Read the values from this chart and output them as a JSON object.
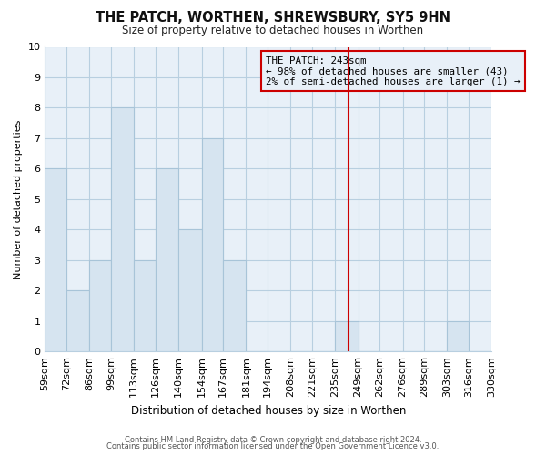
{
  "title": "THE PATCH, WORTHEN, SHREWSBURY, SY5 9HN",
  "subtitle": "Size of property relative to detached houses in Worthen",
  "xlabel": "Distribution of detached houses by size in Worthen",
  "ylabel": "Number of detached properties",
  "bar_color": "#d6e4f0",
  "bar_edge_color": "#a8c4d8",
  "grid_color": "#b8cfe0",
  "plot_bg_color": "#e8f0f8",
  "fig_bg_color": "#ffffff",
  "bin_edges": [
    59,
    72,
    86,
    99,
    113,
    126,
    140,
    154,
    167,
    181,
    194,
    208,
    221,
    235,
    249,
    262,
    276,
    289,
    303,
    316,
    330
  ],
  "bin_labels": [
    "59sqm",
    "72sqm",
    "86sqm",
    "99sqm",
    "113sqm",
    "126sqm",
    "140sqm",
    "154sqm",
    "167sqm",
    "181sqm",
    "194sqm",
    "208sqm",
    "221sqm",
    "235sqm",
    "249sqm",
    "262sqm",
    "276sqm",
    "289sqm",
    "303sqm",
    "316sqm",
    "330sqm"
  ],
  "counts": [
    6,
    2,
    3,
    8,
    3,
    6,
    4,
    7,
    3,
    0,
    0,
    0,
    0,
    1,
    0,
    0,
    0,
    0,
    1,
    0
  ],
  "ylim": [
    0,
    10
  ],
  "yticks": [
    0,
    1,
    2,
    3,
    4,
    5,
    6,
    7,
    8,
    9,
    10
  ],
  "property_value": 243,
  "vline_color": "#cc0000",
  "annotation_line1": "THE PATCH: 243sqm",
  "annotation_line2": "← 98% of detached houses are smaller (43)",
  "annotation_line3": "2% of semi-detached houses are larger (1) →",
  "annotation_box_edge_color": "#cc0000",
  "footnote1": "Contains HM Land Registry data © Crown copyright and database right 2024.",
  "footnote2": "Contains public sector information licensed under the Open Government Licence v3.0."
}
